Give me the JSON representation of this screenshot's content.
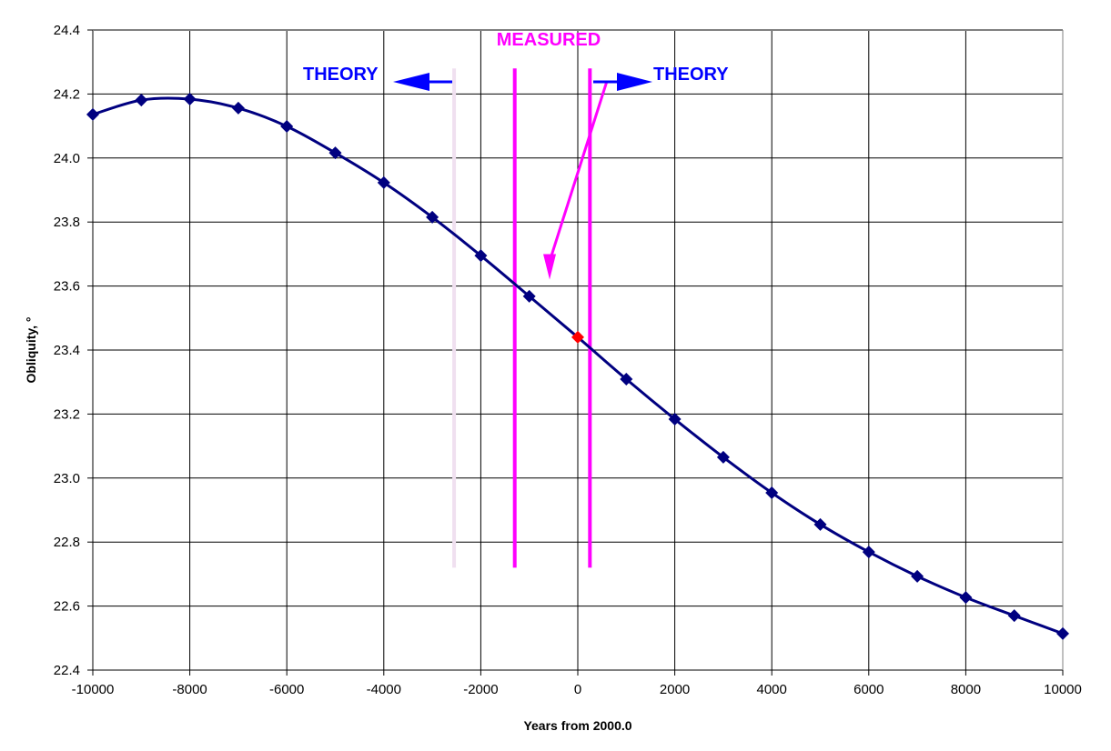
{
  "chart_data": {
    "type": "line",
    "title": "",
    "xlabel": "Years from 2000.0",
    "ylabel": "Obliquity, °",
    "xlim": [
      -10000,
      10000
    ],
    "ylim": [
      22.4,
      24.4
    ],
    "xticks": [
      -10000,
      -8000,
      -6000,
      -4000,
      -2000,
      0,
      2000,
      4000,
      6000,
      8000,
      10000
    ],
    "xtick_labels": [
      "-10000",
      "-8000",
      "-6000",
      "-4000",
      "-2000",
      "0",
      "2000",
      "4000",
      "6000",
      "8000",
      "10000"
    ],
    "yticks": [
      22.4,
      22.6,
      22.8,
      23.0,
      23.2,
      23.4,
      23.6,
      23.8,
      24.0,
      24.2,
      24.4
    ],
    "ytick_labels": [
      "22.4",
      "22.6",
      "22.8",
      "23.0",
      "23.2",
      "23.4",
      "23.6",
      "23.8",
      "24.0",
      "24.2",
      "24.4"
    ],
    "grid": true,
    "series": [
      {
        "x": [
          -10000,
          -9000,
          -8000,
          -7000,
          -6000,
          -5000,
          -4000,
          -3000,
          -2000,
          -1000,
          0,
          1000,
          2000,
          3000,
          4000,
          5000,
          6000,
          7000,
          8000,
          9000,
          10000
        ],
        "y": [
          24.136,
          24.181,
          24.184,
          24.156,
          24.099,
          24.016,
          23.923,
          23.815,
          23.695,
          23.568,
          23.44,
          23.309,
          23.184,
          23.065,
          22.954,
          22.855,
          22.769,
          22.693,
          22.627,
          22.57,
          22.514
        ],
        "color": "#000080",
        "marker": "diamond",
        "highlight": {
          "x": 0,
          "y": 23.44,
          "color": "#ff0000"
        }
      }
    ],
    "annotations": {
      "measured_label": "MEASURED",
      "theory_left_label": "THEORY",
      "theory_right_label": "THEORY",
      "measured_color": "#ff00ff",
      "theory_color": "#0000ff",
      "boundary_faint_color": "#f0e0f0",
      "vertical_lines_x": [
        -2550,
        -1300,
        250
      ],
      "vertical_lines_y": [
        22.72,
        24.28
      ],
      "down_arrow": {
        "x_from": 600,
        "x": -600,
        "y_from": 24.24,
        "y_to": 23.62
      }
    }
  }
}
